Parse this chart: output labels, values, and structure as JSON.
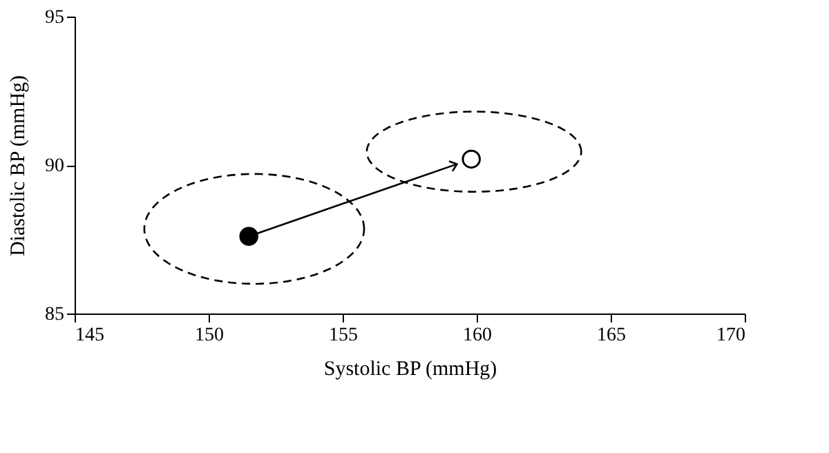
{
  "chart_data": {
    "type": "scatter",
    "xlabel": "Systolic BP (mmHg)",
    "ylabel": "Diastolic BP (mmHg)",
    "xlim": [
      145,
      170
    ],
    "xticks": [
      145,
      150,
      155,
      160,
      165,
      170
    ],
    "ylim": [
      85,
      95
    ],
    "yticks": [
      85,
      90,
      95
    ],
    "grid": false,
    "marker": "circle",
    "series": [
      {
        "color": "#000000",
        "x": [
          151.5
        ],
        "values": [
          87.6
        ]
      },
      {
        "color": "#000000",
        "x": [
          159.8
        ],
        "values": [
          90.2
        ]
      }
    ]
  }
}
